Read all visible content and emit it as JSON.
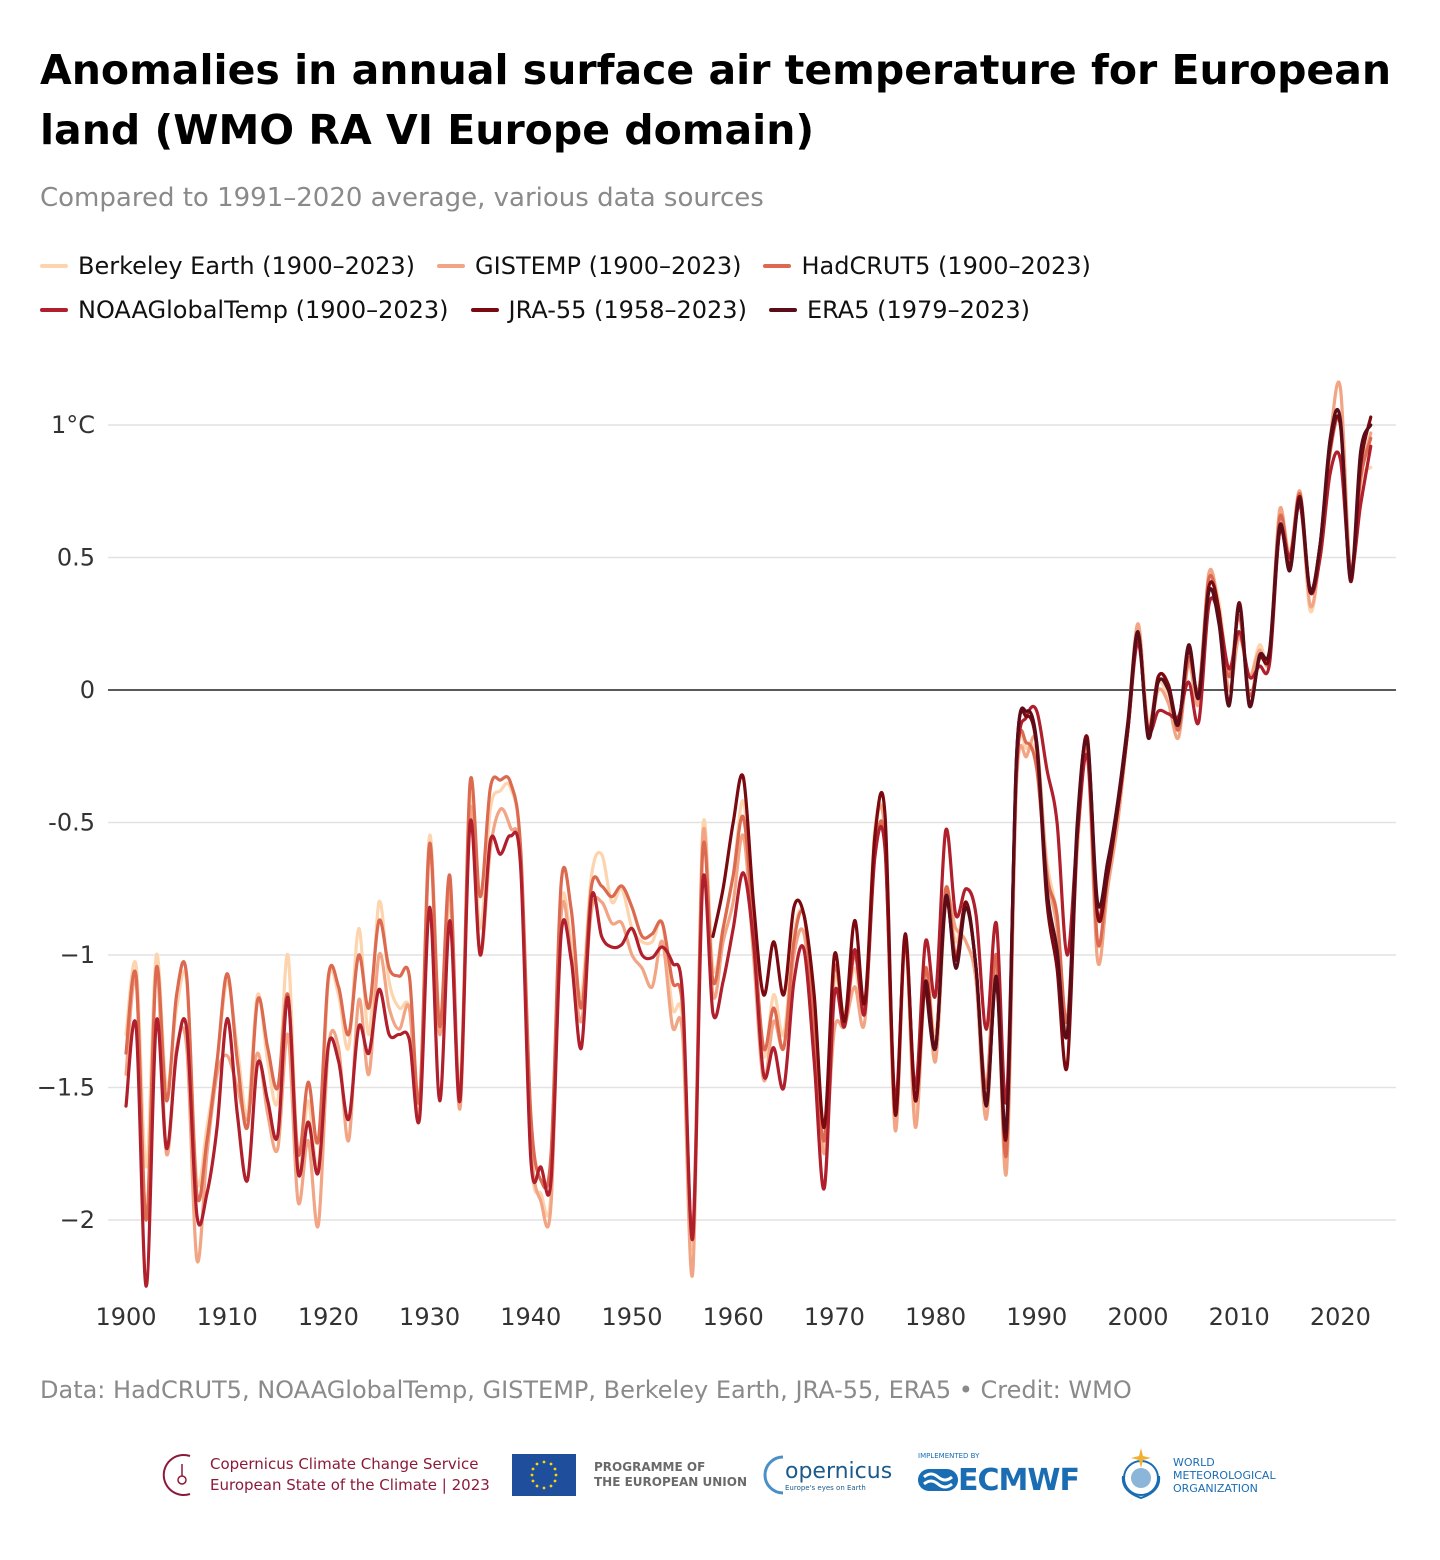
{
  "title": "Anomalies in annual surface air temperature for European land (WMO RA VI Europe domain)",
  "subtitle": "Compared to 1991–2020 average, various data sources",
  "source": "Data: HadCRUT5, NOAAGlobalTemp, GISTEMP, Berkeley Earth, JRA-55, ERA5 • Credit: WMO",
  "logos": {
    "c3s_line1": "Copernicus Climate Change Service",
    "c3s_line2": "European State of the Climate | 2023",
    "eu_line1": "PROGRAMME OF",
    "eu_line2": "THE EUROPEAN UNION",
    "copernicus": "opernicus",
    "copernicus_tagline": "Europe's eyes on Earth",
    "ecmwf_implemented": "IMPLEMENTED BY",
    "ecmwf": "ECMWF",
    "wmo_line1": "WORLD",
    "wmo_line2": "METEOROLOGICAL",
    "wmo_line3": "ORGANIZATION"
  },
  "chart_data": {
    "type": "line",
    "title": "Anomalies in annual surface air temperature for European land (WMO RA VI Europe domain)",
    "subtitle": "Compared to 1991–2020 average, various data sources",
    "xlabel": "",
    "ylabel": "",
    "xlim": [
      1900,
      2023
    ],
    "ylim": [
      -2.25,
      1.25
    ],
    "x_ticks": [
      "1900",
      "1910",
      "1920",
      "1930",
      "1940",
      "1950",
      "1960",
      "1970",
      "1980",
      "1990",
      "2000",
      "2010",
      "2020"
    ],
    "y_ticks": [
      {
        "value": 1,
        "label": "1°C"
      },
      {
        "value": 0.5,
        "label": "0.5"
      },
      {
        "value": 0,
        "label": "0"
      },
      {
        "value": -0.5,
        "label": "-0.5"
      },
      {
        "value": -1,
        "label": "−1"
      },
      {
        "value": -1.5,
        "label": "−1.5"
      },
      {
        "value": -2,
        "label": "−2"
      }
    ],
    "grid": true,
    "legend_position": "top",
    "series": [
      {
        "name": "Berkeley Earth (1900–2023)",
        "color": "#fdd4ae",
        "start": 1900,
        "values": [
          -1.3,
          -1.04,
          -1.8,
          -1.0,
          -1.5,
          -1.2,
          -1.1,
          -1.85,
          -1.65,
          -1.4,
          -1.1,
          -1.35,
          -1.6,
          -1.15,
          -1.4,
          -1.55,
          -1.0,
          -1.8,
          -1.55,
          -1.8,
          -1.1,
          -1.15,
          -1.35,
          -0.9,
          -1.3,
          -0.8,
          -1.1,
          -1.2,
          -1.2,
          -1.55,
          -0.55,
          -1.25,
          -0.8,
          -1.5,
          -0.4,
          -0.9,
          -0.45,
          -0.38,
          -0.37,
          -0.62,
          -1.75,
          -1.9,
          -1.9,
          -0.82,
          -0.95,
          -1.15,
          -0.7,
          -0.62,
          -0.8,
          -0.75,
          -0.9,
          -0.95,
          -0.95,
          -0.88,
          -1.2,
          -1.25,
          -2.1,
          -0.52,
          -1.05,
          -0.9,
          -0.7,
          -0.42,
          -0.88,
          -1.38,
          -1.15,
          -1.3,
          -0.92,
          -0.85,
          -1.25,
          -1.72,
          -1.1,
          -1.22,
          -1.05,
          -1.2,
          -0.52,
          -0.55,
          -1.6,
          -0.93,
          -1.6,
          -1.05,
          -1.3,
          -0.75,
          -0.95,
          -0.82,
          -1.05,
          -1.55,
          -1.0,
          -1.75,
          -0.3,
          -0.22,
          -0.25,
          -0.65,
          -0.85,
          -1.25,
          -0.55,
          -0.2,
          -0.95,
          -0.72,
          -0.45,
          -0.12,
          0.24,
          -0.12,
          0.03,
          -0.03,
          -0.15,
          0.12,
          -0.02,
          0.42,
          0.33,
          0.05,
          0.22,
          0.05,
          0.17,
          0.13,
          0.66,
          0.52,
          0.73,
          0.3,
          0.52,
          0.92,
          1.0,
          0.42,
          0.78,
          0.84
        ]
      },
      {
        "name": "GISTEMP (1900–2023)",
        "color": "#f2a585",
        "start": 1900,
        "values": [
          -1.45,
          -1.1,
          -2.0,
          -1.05,
          -1.75,
          -1.35,
          -1.35,
          -2.15,
          -1.75,
          -1.45,
          -1.38,
          -1.5,
          -1.62,
          -1.37,
          -1.6,
          -1.73,
          -1.3,
          -1.93,
          -1.7,
          -2.02,
          -1.35,
          -1.35,
          -1.7,
          -1.17,
          -1.45,
          -1.0,
          -1.2,
          -1.28,
          -1.2,
          -1.6,
          -0.6,
          -1.3,
          -0.75,
          -1.58,
          -0.45,
          -1.0,
          -0.6,
          -0.45,
          -0.52,
          -0.65,
          -1.7,
          -1.93,
          -1.94,
          -0.85,
          -1.0,
          -1.25,
          -0.83,
          -0.8,
          -0.88,
          -0.88,
          -1.0,
          -1.05,
          -1.12,
          -0.95,
          -1.27,
          -1.3,
          -2.2,
          -0.55,
          -1.15,
          -0.95,
          -0.8,
          -0.55,
          -1.0,
          -1.47,
          -1.25,
          -1.35,
          -1.0,
          -0.92,
          -1.3,
          -1.75,
          -1.28,
          -1.27,
          -1.12,
          -1.25,
          -0.55,
          -0.55,
          -1.66,
          -0.95,
          -1.65,
          -1.1,
          -1.4,
          -0.8,
          -0.9,
          -0.95,
          -1.1,
          -1.62,
          -1.05,
          -1.82,
          -0.35,
          -0.25,
          -0.2,
          -0.68,
          -0.9,
          -1.3,
          -0.6,
          -0.25,
          -1.02,
          -0.75,
          -0.5,
          -0.15,
          0.25,
          -0.15,
          0.0,
          -0.05,
          -0.18,
          0.1,
          -0.05,
          0.44,
          0.3,
          0.0,
          0.2,
          0.05,
          0.15,
          0.12,
          0.68,
          0.48,
          0.75,
          0.32,
          0.52,
          0.95,
          1.14,
          0.45,
          0.8,
          0.97
        ]
      },
      {
        "name": "HadCRUT5 (1900–2023)",
        "color": "#dc6a50",
        "start": 1900,
        "values": [
          -1.37,
          -1.08,
          -2.0,
          -1.05,
          -1.55,
          -1.15,
          -1.08,
          -1.9,
          -1.7,
          -1.4,
          -1.07,
          -1.4,
          -1.65,
          -1.17,
          -1.35,
          -1.5,
          -1.15,
          -1.75,
          -1.48,
          -1.7,
          -1.08,
          -1.12,
          -1.3,
          -1.0,
          -1.2,
          -0.87,
          -1.05,
          -1.08,
          -1.08,
          -1.55,
          -0.58,
          -1.27,
          -0.7,
          -1.55,
          -0.35,
          -0.78,
          -0.37,
          -0.34,
          -0.35,
          -0.6,
          -1.6,
          -1.85,
          -1.75,
          -0.73,
          -0.83,
          -1.2,
          -0.74,
          -0.74,
          -0.78,
          -0.74,
          -0.82,
          -0.93,
          -0.92,
          -0.88,
          -1.1,
          -1.2,
          -2.05,
          -0.6,
          -1.1,
          -0.9,
          -0.7,
          -0.48,
          -0.9,
          -1.35,
          -1.2,
          -1.35,
          -0.95,
          -0.85,
          -1.25,
          -1.7,
          -1.05,
          -1.25,
          -1.0,
          -1.2,
          -0.62,
          -0.58,
          -1.6,
          -0.95,
          -1.55,
          -1.05,
          -1.35,
          -0.75,
          -1.0,
          -0.8,
          -1.05,
          -1.5,
          -1.0,
          -1.75,
          -0.3,
          -0.2,
          -0.3,
          -0.7,
          -0.85,
          -1.25,
          -0.55,
          -0.22,
          -0.95,
          -0.7,
          -0.45,
          -0.15,
          0.2,
          -0.15,
          0.05,
          0.02,
          -0.15,
          0.12,
          0.0,
          0.42,
          0.3,
          0.05,
          0.28,
          -0.02,
          0.12,
          0.15,
          0.65,
          0.5,
          0.74,
          0.38,
          0.55,
          0.9,
          1.0,
          0.45,
          0.8,
          0.95
        ]
      },
      {
        "name": "NOAAGlobalTemp (1900–2023)",
        "color": "#b01f2c",
        "start": 1900,
        "values": [
          -1.57,
          -1.27,
          -2.25,
          -1.25,
          -1.73,
          -1.37,
          -1.28,
          -1.98,
          -1.9,
          -1.65,
          -1.24,
          -1.6,
          -1.85,
          -1.41,
          -1.55,
          -1.68,
          -1.16,
          -1.82,
          -1.63,
          -1.82,
          -1.34,
          -1.4,
          -1.62,
          -1.27,
          -1.37,
          -1.13,
          -1.3,
          -1.3,
          -1.32,
          -1.62,
          -0.82,
          -1.55,
          -0.87,
          -1.55,
          -0.5,
          -1.0,
          -0.57,
          -0.62,
          -0.55,
          -0.67,
          -1.77,
          -1.8,
          -1.85,
          -0.92,
          -1.02,
          -1.35,
          -0.78,
          -0.93,
          -0.97,
          -0.96,
          -0.9,
          -1.0,
          -1.01,
          -0.97,
          -1.03,
          -1.15,
          -2.07,
          -0.72,
          -1.22,
          -1.1,
          -0.9,
          -0.69,
          -0.95,
          -1.45,
          -1.35,
          -1.5,
          -1.1,
          -0.98,
          -1.4,
          -1.88,
          -1.15,
          -1.27,
          -0.98,
          -1.22,
          -0.63,
          -0.6,
          -1.55,
          -0.95,
          -1.5,
          -0.95,
          -1.15,
          -0.53,
          -0.85,
          -0.75,
          -0.85,
          -1.28,
          -0.88,
          -1.55,
          -0.3,
          -0.1,
          -0.08,
          -0.3,
          -0.5,
          -1.0,
          -0.55,
          -0.25,
          -0.85,
          -0.65,
          -0.45,
          -0.15,
          0.18,
          -0.15,
          -0.08,
          -0.09,
          -0.1,
          0.03,
          -0.12,
          0.32,
          0.28,
          0.08,
          0.22,
          0.05,
          0.09,
          0.1,
          0.6,
          0.5,
          0.7,
          0.37,
          0.5,
          0.82,
          0.87,
          0.45,
          0.7,
          0.92
        ]
      },
      {
        "name": "JRA-55 (1958–2023)",
        "color": "#7a0a10",
        "start": 1958,
        "values": [
          -0.93,
          -0.75,
          -0.5,
          -0.33,
          -0.8,
          -1.15,
          -0.95,
          -1.15,
          -0.82,
          -0.85,
          -1.15,
          -1.65,
          -1.0,
          -1.25,
          -0.87,
          -1.18,
          -0.55,
          -0.47,
          -1.6,
          -0.92,
          -1.55,
          -1.1,
          -1.35,
          -0.8,
          -1.02,
          -0.8,
          -1.05,
          -1.55,
          -1.1,
          -1.68,
          -0.25,
          -0.1,
          -0.22,
          -0.8,
          -1.05,
          -1.42,
          -0.55,
          -0.18,
          -0.85,
          -0.7,
          -0.45,
          -0.15,
          0.21,
          -0.16,
          0.05,
          0.02,
          -0.12,
          0.15,
          -0.02,
          0.39,
          0.3,
          -0.05,
          0.33,
          -0.05,
          0.12,
          0.13,
          0.6,
          0.47,
          0.73,
          0.38,
          0.55,
          0.92,
          1.0,
          0.41,
          0.85,
          1.03
        ]
      },
      {
        "name": "ERA5 (1979–2023)",
        "color": "#5a0d18",
        "start": 1979,
        "values": [
          -1.1,
          -1.35,
          -0.78,
          -1.05,
          -0.82,
          -1.05,
          -1.57,
          -1.08,
          -1.65,
          -0.25,
          -0.08,
          -0.2,
          -0.75,
          -0.98,
          -1.3,
          -0.5,
          -0.2,
          -0.8,
          -0.65,
          -0.42,
          -0.12,
          0.22,
          -0.18,
          0.03,
          0.0,
          -0.13,
          0.17,
          -0.03,
          0.37,
          0.25,
          -0.06,
          0.32,
          -0.06,
          0.13,
          0.15,
          0.62,
          0.45,
          0.72,
          0.37,
          0.55,
          0.95,
          1.02,
          0.42,
          0.9,
          1.0
        ]
      }
    ]
  }
}
